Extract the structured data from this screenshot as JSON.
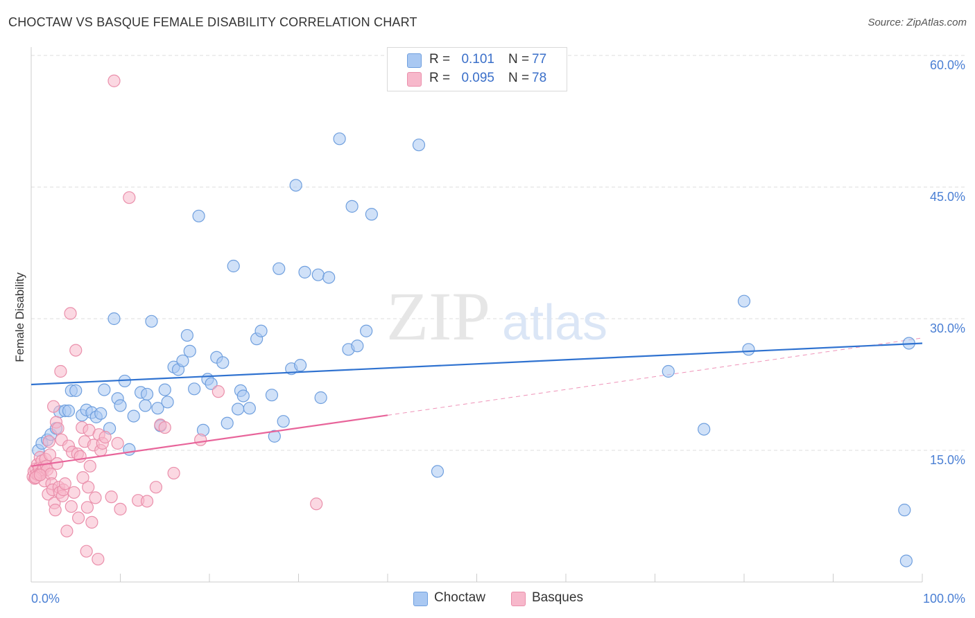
{
  "header": {
    "title": "CHOCTAW VS BASQUE FEMALE DISABILITY CORRELATION CHART",
    "source": "Source: ZipAtlas.com"
  },
  "watermark": {
    "zip": "ZIP",
    "atlas": "atlas"
  },
  "legend": {
    "r_label": "R =",
    "n_label": "N =",
    "rows": [
      {
        "r": "0.101",
        "n": "77",
        "color": "#a9c8f2"
      },
      {
        "r": "0.095",
        "n": "78",
        "color": "#f7b8cb"
      }
    ]
  },
  "colors": {
    "choctaw_fill": "#a9c8f2",
    "choctaw_stroke": "#6f9fde",
    "choctaw_line": "#2f72d0",
    "basques_fill": "#f7b8cb",
    "basques_stroke": "#ea8fab",
    "basques_line": "#e8649a",
    "axis_text": "#4a7fd4",
    "grid": "#dddddd"
  },
  "chart_data": {
    "type": "scatter",
    "title": "CHOCTAW VS BASQUE FEMALE DISABILITY CORRELATION CHART",
    "xlabel": "",
    "ylabel": "Female Disability",
    "xlim": [
      0,
      100
    ],
    "ylim": [
      0,
      60
    ],
    "x_tick_labels": [
      "0.0%",
      "100.0%"
    ],
    "y_ticks": [
      15,
      30,
      45,
      60
    ],
    "y_tick_labels": [
      "15.0%",
      "30.0%",
      "45.0%",
      "60.0%"
    ],
    "grid": "horizontal dashed",
    "legend_position": "top-center",
    "series": [
      {
        "name": "Choctaw",
        "color": "#a9c8f2",
        "trend": {
          "x": [
            0,
            100
          ],
          "y": [
            22.5,
            27.2
          ],
          "style": "solid"
        },
        "points": [
          [
            0.8,
            15.0
          ],
          [
            1.2,
            15.8
          ],
          [
            1.8,
            16.2
          ],
          [
            2.2,
            16.8
          ],
          [
            2.8,
            17.5
          ],
          [
            3.2,
            19.4
          ],
          [
            3.8,
            19.5
          ],
          [
            4.2,
            19.5
          ],
          [
            4.5,
            21.8
          ],
          [
            5.0,
            21.8
          ],
          [
            5.7,
            19.0
          ],
          [
            6.2,
            19.6
          ],
          [
            6.8,
            19.3
          ],
          [
            7.3,
            18.8
          ],
          [
            7.8,
            19.2
          ],
          [
            8.2,
            21.9
          ],
          [
            8.8,
            17.5
          ],
          [
            9.3,
            30.0
          ],
          [
            9.7,
            20.9
          ],
          [
            10.0,
            20.1
          ],
          [
            10.5,
            22.9
          ],
          [
            11.0,
            15.1
          ],
          [
            11.5,
            18.9
          ],
          [
            12.3,
            21.6
          ],
          [
            12.8,
            20.1
          ],
          [
            13.0,
            21.4
          ],
          [
            13.5,
            29.7
          ],
          [
            14.2,
            19.8
          ],
          [
            14.5,
            17.8
          ],
          [
            15.0,
            21.9
          ],
          [
            15.3,
            20.5
          ],
          [
            16.0,
            24.5
          ],
          [
            16.5,
            24.2
          ],
          [
            17.0,
            25.2
          ],
          [
            17.5,
            28.1
          ],
          [
            17.8,
            26.3
          ],
          [
            18.3,
            22.0
          ],
          [
            18.8,
            41.7
          ],
          [
            19.3,
            17.3
          ],
          [
            19.8,
            23.1
          ],
          [
            20.2,
            22.6
          ],
          [
            20.8,
            25.6
          ],
          [
            21.5,
            25.0
          ],
          [
            22.0,
            18.1
          ],
          [
            22.7,
            36.0
          ],
          [
            23.2,
            19.7
          ],
          [
            23.5,
            21.8
          ],
          [
            23.8,
            21.2
          ],
          [
            24.5,
            19.8
          ],
          [
            25.3,
            27.7
          ],
          [
            25.8,
            28.6
          ],
          [
            27.0,
            21.3
          ],
          [
            27.3,
            16.6
          ],
          [
            27.8,
            35.7
          ],
          [
            28.3,
            18.3
          ],
          [
            29.2,
            24.3
          ],
          [
            29.7,
            45.2
          ],
          [
            30.2,
            24.7
          ],
          [
            30.7,
            35.3
          ],
          [
            32.2,
            35.0
          ],
          [
            32.5,
            21.0
          ],
          [
            33.4,
            34.7
          ],
          [
            34.6,
            50.5
          ],
          [
            35.6,
            26.5
          ],
          [
            36.0,
            42.8
          ],
          [
            36.6,
            26.9
          ],
          [
            37.6,
            28.6
          ],
          [
            38.2,
            41.9
          ],
          [
            43.5,
            49.8
          ],
          [
            45.6,
            12.6
          ],
          [
            71.5,
            24.0
          ],
          [
            75.5,
            17.4
          ],
          [
            80.0,
            32.0
          ],
          [
            80.5,
            26.5
          ],
          [
            98.0,
            8.2
          ],
          [
            98.5,
            27.2
          ],
          [
            98.2,
            2.4
          ]
        ]
      },
      {
        "name": "Basques",
        "color": "#f7b8cb",
        "trend": {
          "x": [
            0,
            40
          ],
          "y": [
            13.2,
            19.0
          ],
          "style": "solid",
          "extended_to": [
            100,
            27.8
          ]
        },
        "points": [
          [
            0.2,
            12.0
          ],
          [
            0.3,
            12.6
          ],
          [
            0.4,
            11.8
          ],
          [
            0.5,
            12.9
          ],
          [
            0.6,
            12.3
          ],
          [
            0.7,
            13.4
          ],
          [
            0.8,
            12.2
          ],
          [
            0.9,
            13.0
          ],
          [
            1.0,
            14.2
          ],
          [
            1.1,
            12.5
          ],
          [
            1.2,
            13.8
          ],
          [
            1.3,
            12.7
          ],
          [
            1.4,
            13.1
          ],
          [
            1.5,
            11.5
          ],
          [
            1.6,
            14.0
          ],
          [
            1.7,
            13.2
          ],
          [
            1.8,
            12.8
          ],
          [
            1.9,
            10.0
          ],
          [
            2.0,
            16.0
          ],
          [
            2.1,
            14.5
          ],
          [
            2.2,
            12.3
          ],
          [
            2.3,
            11.2
          ],
          [
            2.4,
            10.5
          ],
          [
            2.5,
            20.0
          ],
          [
            2.6,
            9.0
          ],
          [
            2.7,
            8.2
          ],
          [
            2.8,
            18.2
          ],
          [
            2.9,
            13.5
          ],
          [
            3.0,
            17.5
          ],
          [
            3.1,
            10.8
          ],
          [
            3.2,
            10.2
          ],
          [
            3.3,
            24.0
          ],
          [
            3.4,
            16.2
          ],
          [
            3.5,
            9.8
          ],
          [
            3.6,
            10.5
          ],
          [
            3.8,
            11.2
          ],
          [
            4.0,
            5.8
          ],
          [
            4.2,
            15.5
          ],
          [
            4.4,
            30.6
          ],
          [
            4.5,
            8.6
          ],
          [
            4.6,
            14.8
          ],
          [
            4.8,
            10.2
          ],
          [
            5.0,
            26.4
          ],
          [
            5.2,
            14.6
          ],
          [
            5.3,
            7.3
          ],
          [
            5.5,
            14.3
          ],
          [
            5.7,
            17.6
          ],
          [
            5.8,
            11.9
          ],
          [
            6.0,
            16.0
          ],
          [
            6.2,
            3.5
          ],
          [
            6.3,
            8.5
          ],
          [
            6.4,
            10.8
          ],
          [
            6.5,
            17.3
          ],
          [
            6.6,
            13.2
          ],
          [
            6.8,
            6.8
          ],
          [
            7.0,
            15.6
          ],
          [
            7.2,
            9.6
          ],
          [
            7.5,
            2.6
          ],
          [
            7.8,
            15.0
          ],
          [
            7.6,
            16.8
          ],
          [
            8.0,
            15.8
          ],
          [
            8.3,
            16.5
          ],
          [
            9.0,
            9.7
          ],
          [
            9.3,
            57.1
          ],
          [
            9.7,
            15.8
          ],
          [
            10.0,
            8.3
          ],
          [
            11.0,
            43.8
          ],
          [
            12.0,
            9.3
          ],
          [
            13.0,
            9.2
          ],
          [
            14.0,
            10.8
          ],
          [
            14.5,
            17.9
          ],
          [
            15.0,
            17.6
          ],
          [
            16.0,
            12.4
          ],
          [
            19.0,
            16.2
          ],
          [
            21.0,
            21.7
          ],
          [
            32.0,
            8.9
          ],
          [
            0.5,
            11.9
          ],
          [
            1.0,
            12.2
          ]
        ]
      }
    ]
  },
  "bottom_legend": {
    "items": [
      "Choctaw",
      "Basques"
    ]
  }
}
